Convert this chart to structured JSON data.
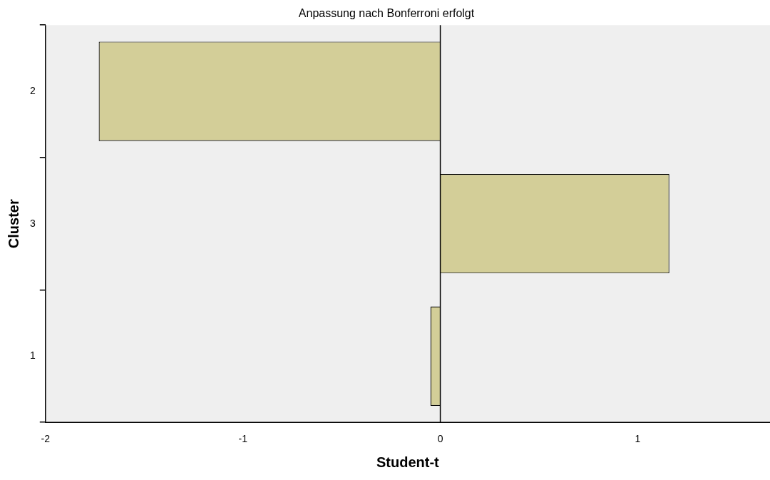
{
  "chart_data": {
    "type": "bar",
    "orientation": "horizontal",
    "title": "Anpassung nach Bonferroni erfolgt",
    "xlabel": "Student-t",
    "ylabel": "Cluster",
    "categories": [
      "2",
      "3",
      "1"
    ],
    "values": [
      -1.73,
      1.16,
      -0.05
    ],
    "color": "#d3ce98",
    "xlim": [
      -2,
      1.67
    ],
    "xticks": [
      -2,
      -1,
      0,
      1
    ],
    "grid": false,
    "ref_lines": [
      {
        "axis": "x",
        "value": 0,
        "color": "#000000"
      }
    ]
  }
}
